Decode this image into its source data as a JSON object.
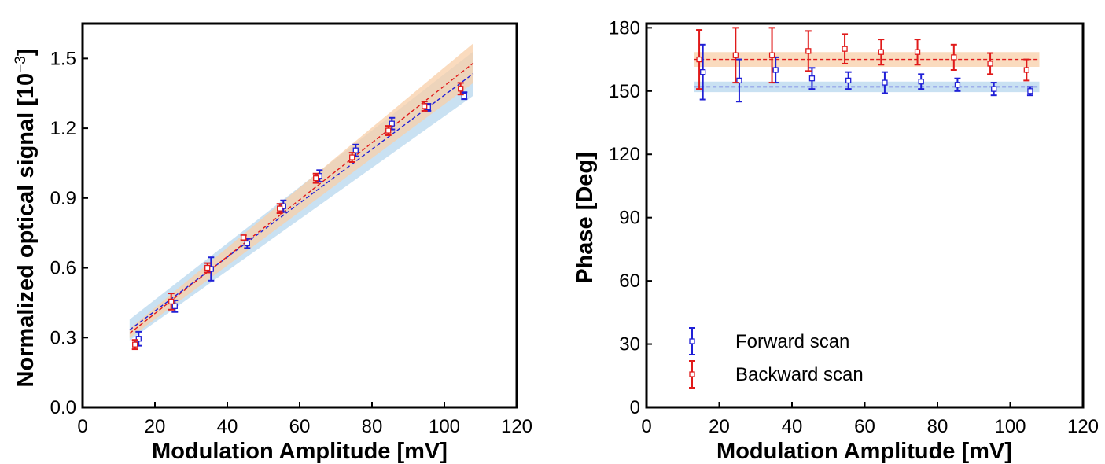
{
  "chart_data": [
    {
      "type": "scatter",
      "xlabel": "Modulation Amplitude [mV]",
      "ylabel": "Normalized optical signal [10",
      "ylabel_exponent": "−3",
      "ylabel_suffix": "]",
      "xlim": [
        0,
        120
      ],
      "ylim": [
        0,
        1.65
      ],
      "xticks": [
        "0",
        "20",
        "40",
        "60",
        "80",
        "100",
        "120"
      ],
      "yticks": [
        "0.0",
        "0.3",
        "0.6",
        "0.9",
        "1.2",
        "1.5"
      ],
      "grid": false,
      "series": [
        {
          "color": "#1f1fd6",
          "marker": "open-square",
          "x": [
            15.5,
            25.5,
            35.5,
            45.5,
            55.5,
            65.5,
            75.5,
            85.5,
            95.5,
            105.5
          ],
          "y": [
            0.295,
            0.435,
            0.595,
            0.705,
            0.865,
            0.995,
            1.105,
            1.22,
            1.29,
            1.34
          ],
          "err": [
            0.03,
            0.025,
            0.05,
            0.02,
            0.025,
            0.025,
            0.025,
            0.025,
            0.015,
            0.015
          ],
          "fit": {
            "x": [
              13,
              108
            ],
            "y": [
              0.333,
              1.435
            ],
            "band_color": "#b7d7ee",
            "band_half_width": [
              0.045,
              0.095
            ]
          }
        },
        {
          "color": "#e01a1a",
          "marker": "open-square",
          "x": [
            14.5,
            24.5,
            34.5,
            44.5,
            54.5,
            64.5,
            74.5,
            84.5,
            94.5,
            104.5
          ],
          "y": [
            0.27,
            0.455,
            0.6,
            0.73,
            0.855,
            0.985,
            1.075,
            1.19,
            1.295,
            1.37
          ],
          "err": [
            0.02,
            0.035,
            0.02,
            0.01,
            0.02,
            0.02,
            0.02,
            0.02,
            0.02,
            0.025
          ],
          "fit": {
            "x": [
              13,
              108
            ],
            "y": [
              0.318,
              1.48
            ],
            "band_color": "#f8cfa8",
            "band_half_width": [
              0.02,
              0.085
            ]
          }
        }
      ]
    },
    {
      "type": "scatter",
      "xlabel": "Modulation Amplitude [mV]",
      "ylabel": "Phase [Deg]",
      "xlim": [
        0,
        120
      ],
      "ylim": [
        0,
        182
      ],
      "xticks": [
        "0",
        "20",
        "40",
        "60",
        "80",
        "100",
        "120"
      ],
      "yticks": [
        "0",
        "30",
        "60",
        "90",
        "120",
        "150",
        "180"
      ],
      "grid": false,
      "legend": {
        "placement": "lower-left",
        "entries": [
          "Forward scan",
          "Backward scan"
        ]
      },
      "series": [
        {
          "name": "Forward scan",
          "color": "#1f1fd6",
          "marker": "open-square",
          "x": [
            15.5,
            25.5,
            35.5,
            45.5,
            55.5,
            65.5,
            75.5,
            85.5,
            95.5,
            105.5
          ],
          "y": [
            159,
            155,
            160,
            156,
            155,
            154,
            154.5,
            153,
            151,
            150
          ],
          "err": [
            13,
            10,
            6,
            5,
            4,
            5,
            3.5,
            3,
            3,
            2
          ],
          "fit": {
            "x": [
              13,
              108
            ],
            "y": [
              152,
              152
            ],
            "band_color": "#b7d7ee",
            "band_half_width": [
              2.5,
              2.5
            ]
          }
        },
        {
          "name": "Backward scan",
          "color": "#e01a1a",
          "marker": "open-square",
          "x": [
            14.5,
            24.5,
            34.5,
            44.5,
            54.5,
            64.5,
            74.5,
            84.5,
            94.5,
            104.5
          ],
          "y": [
            165,
            167,
            167,
            169,
            170,
            168.5,
            168.5,
            166,
            163,
            160
          ],
          "err": [
            14,
            13,
            13,
            9.5,
            7,
            6,
            6,
            6,
            5,
            5
          ],
          "fit": {
            "x": [
              13,
              108
            ],
            "y": [
              165,
              165
            ],
            "band_color": "#f8cfa8",
            "band_half_width": [
              3.5,
              3.5
            ]
          }
        }
      ]
    }
  ]
}
